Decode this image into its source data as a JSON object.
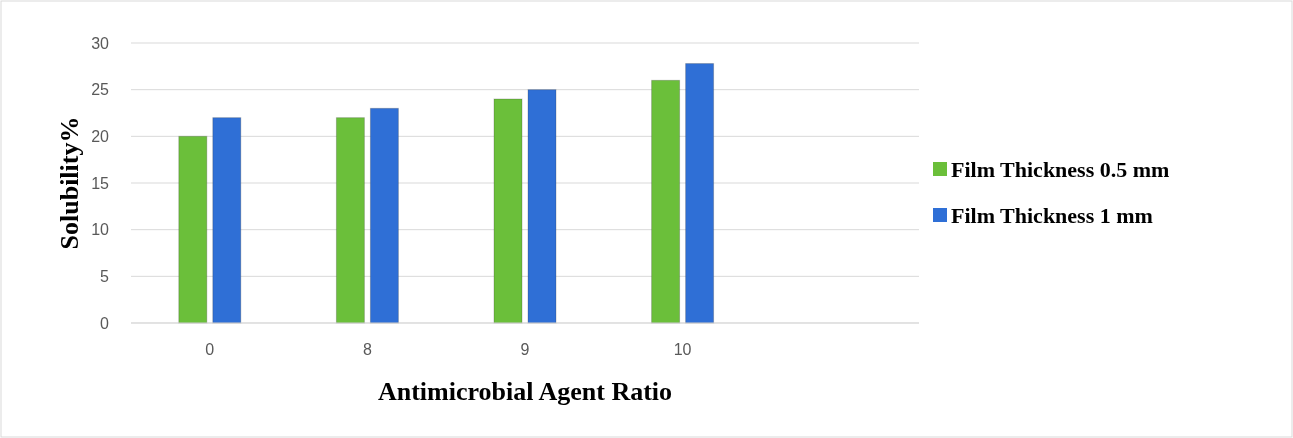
{
  "chart_data": {
    "type": "bar",
    "xlabel": "Antimicrobial Agent Ratio",
    "ylabel": "Solubility%",
    "categories": [
      "0",
      "8",
      "9",
      "10",
      null
    ],
    "series": [
      {
        "name": "Film Thickness 0.5 mm",
        "color": "#6bbf3a",
        "values": [
          20,
          22,
          24,
          26,
          null
        ]
      },
      {
        "name": "Film Thickness 1 mm",
        "color": "#2f6fd6",
        "values": [
          22,
          23,
          25,
          27.8,
          null
        ]
      }
    ],
    "ylim": [
      0,
      30
    ],
    "yticks": [
      0,
      5,
      10,
      15,
      20,
      25,
      30
    ],
    "grid": "y",
    "legend": "right"
  }
}
